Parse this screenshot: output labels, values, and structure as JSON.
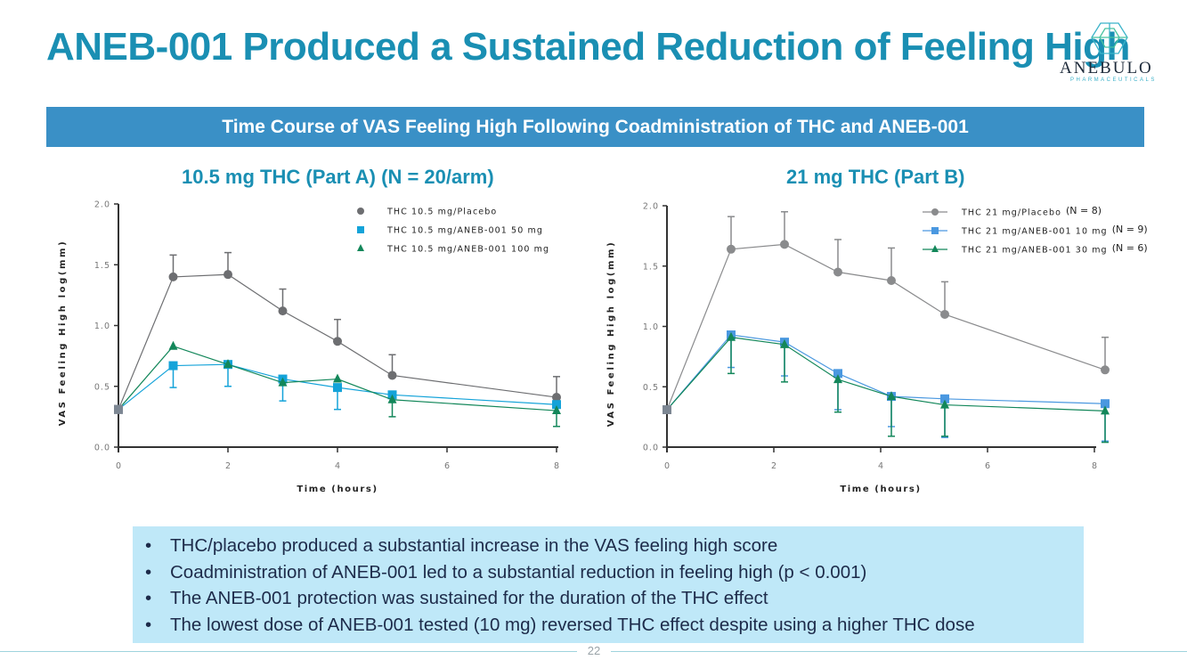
{
  "title": "ANEB-001 Produced a Sustained Reduction of Feeling High",
  "logo": {
    "name": "ANEBULO",
    "subtitle": "PHARMACEUTICALS",
    "icon": "hexagon-logo-icon"
  },
  "banner": "Time Course of VAS Feeling High Following Coadministration of THC and ANEB-001",
  "subtitles": [
    "10.5 mg THC (Part A) (N = 20/arm)",
    "21 mg THC (Part B)"
  ],
  "colors": {
    "placebo": "#6d6e71",
    "dose_a_low": "#14a3d9",
    "dose_a_high": "#13875a",
    "placebo_b": "#8a8b8d",
    "dose_b_low": "#4a98e0",
    "dose_b_high": "#13875a",
    "title": "#1a8fb3",
    "banner": "#3a90c6"
  },
  "chart_data": [
    {
      "type": "line",
      "title": "10.5 mg THC (Part A) (N = 20/arm)",
      "xlabel": "Time (hours)",
      "ylabel": "VAS Feeling High log(mm)",
      "xlim": [
        0,
        8
      ],
      "ylim": [
        0,
        2.0
      ],
      "xticks": [
        "0",
        "2",
        "4",
        "6",
        "8"
      ],
      "yticks": [
        "0.0",
        "0.5",
        "1.0",
        "1.5",
        "2.0"
      ],
      "legend_position": "top-right",
      "legend_style": "markers-only",
      "x": [
        0,
        1,
        2,
        3,
        4,
        5,
        8
      ],
      "series": [
        {
          "name": "THC 10.5 mg/Placebo",
          "marker": "circle",
          "color": "#6d6e71",
          "values": [
            0.31,
            1.4,
            1.42,
            1.12,
            0.87,
            0.59,
            0.41
          ],
          "error_upper": [
            null,
            1.58,
            1.6,
            1.3,
            1.05,
            0.76,
            0.58
          ]
        },
        {
          "name": "THC 10.5 mg/ANEB-001 50 mg",
          "marker": "square",
          "color": "#14a3d9",
          "values": [
            0.31,
            0.67,
            0.68,
            0.56,
            0.49,
            0.43,
            0.35
          ],
          "error_lower": [
            null,
            0.49,
            0.5,
            0.38,
            0.31,
            null,
            null
          ]
        },
        {
          "name": "THC 10.5 mg/ANEB-001 100 mg",
          "marker": "triangle",
          "color": "#13875a",
          "values": [
            0.31,
            0.83,
            0.68,
            0.53,
            0.56,
            0.39,
            0.3
          ],
          "error_lower": [
            null,
            null,
            null,
            null,
            null,
            0.25,
            0.17
          ]
        }
      ]
    },
    {
      "type": "line",
      "title": "21 mg THC (Part B)",
      "xlabel": "Time (hours)",
      "ylabel": "VAS Feeling High log(mm)",
      "xlim": [
        0,
        8
      ],
      "ylim": [
        0,
        2.0
      ],
      "xticks": [
        "0",
        "2",
        "4",
        "6",
        "8"
      ],
      "yticks": [
        "0.0",
        "0.5",
        "1.0",
        "1.5",
        "2.0"
      ],
      "legend_position": "top-right",
      "legend_style": "line-with-marker",
      "x": [
        0,
        1.2,
        2.2,
        3.2,
        4.2,
        5.2,
        8.2
      ],
      "series": [
        {
          "name": "THC 21 mg/Placebo",
          "n_label": "(N = 8)",
          "marker": "circle",
          "color": "#8a8b8d",
          "values": [
            0.31,
            1.64,
            1.68,
            1.45,
            1.38,
            1.1,
            0.64
          ],
          "error_upper": [
            null,
            1.91,
            1.95,
            1.72,
            1.65,
            1.37,
            0.91
          ]
        },
        {
          "name": "THC 21 mg/ANEB-001 10 mg",
          "n_label": "(N = 9)",
          "marker": "square",
          "color": "#4a98e0",
          "values": [
            0.31,
            0.93,
            0.87,
            0.61,
            0.42,
            0.4,
            0.36
          ],
          "error_lower": [
            null,
            0.66,
            0.59,
            0.31,
            0.17,
            0.08,
            0.05
          ]
        },
        {
          "name": "THC 21 mg/ANEB-001 30 mg",
          "n_label": "(N = 6)",
          "marker": "triangle",
          "color": "#13875a",
          "values": [
            0.31,
            0.91,
            0.85,
            0.56,
            0.42,
            0.35,
            0.3
          ],
          "error_lower": [
            null,
            0.61,
            0.54,
            0.29,
            0.09,
            0.09,
            0.04
          ]
        }
      ]
    }
  ],
  "bullets": [
    "THC/placebo produced a substantial increase in the VAS feeling high score",
    "Coadministration of ANEB-001 led to a substantial reduction in feeling high (p < 0.001)",
    "The ANEB-001 protection was sustained for the duration of the THC effect",
    "The lowest dose of ANEB-001 tested (10 mg) reversed THC effect despite using a higher THC dose"
  ],
  "bullet_glyph": "•",
  "page_number": "22"
}
